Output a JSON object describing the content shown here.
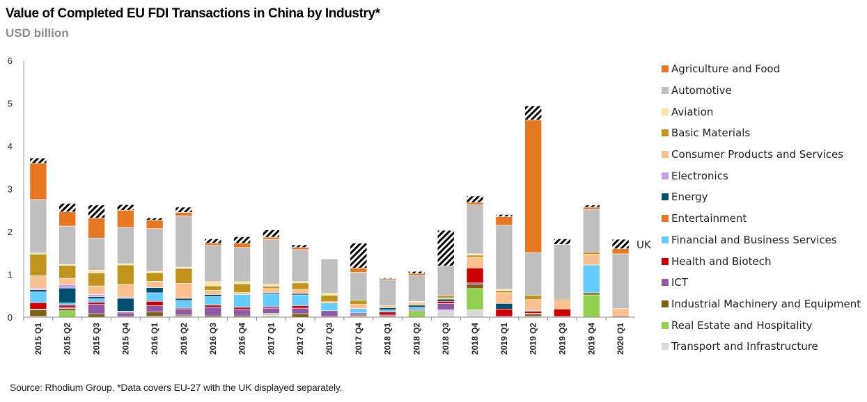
{
  "title": "Value of Completed EU FDI Transactions in China by Industry*",
  "subtitle": "USD billion",
  "source": "Source: Rhodium Group. *Data covers EU-27 with the UK displayed separately.",
  "uk_label": "UK",
  "chart_data": {
    "type": "bar",
    "stacked": true,
    "ylim": [
      0,
      6
    ],
    "yticks": [
      "0",
      "1",
      "2",
      "3",
      "4",
      "5",
      "6"
    ],
    "categories": [
      "2015 Q1",
      "2015 Q2",
      "2015 Q3",
      "2015 Q4",
      "2016 Q1",
      "2016 Q2",
      "2016 Q3",
      "2016 Q4",
      "2017 Q1",
      "2017 Q2",
      "2017 Q3",
      "2017 Q4",
      "2018 Q1",
      "2018 Q2",
      "2018 Q3",
      "2018 Q4",
      "2019 Q1",
      "2019 Q2",
      "2019 Q3",
      "2019 Q4",
      "2020 Q1"
    ],
    "series": [
      {
        "name": "Transport and Infrastructure",
        "color": "#d9d9d9",
        "values": [
          0.02,
          0,
          0,
          0,
          0.02,
          0.02,
          0,
          0,
          0.05,
          0,
          0,
          0.02,
          0,
          0,
          0.17,
          0.17,
          0,
          0.02,
          0,
          0,
          0
        ]
      },
      {
        "name": "Real Estate and Hospitality",
        "color": "#92d050",
        "values": [
          0,
          0.15,
          0,
          0,
          0,
          0,
          0,
          0,
          0.02,
          0,
          0,
          0,
          0,
          0.15,
          0,
          0.5,
          0,
          0,
          0,
          0.52,
          0
        ]
      },
      {
        "name": "Industrial Machinery and Equipment",
        "color": "#7f5f11",
        "values": [
          0.15,
          0.05,
          0.08,
          0.02,
          0.1,
          0.03,
          0.03,
          0.03,
          0.02,
          0.08,
          0.02,
          0.03,
          0.02,
          0,
          0,
          0.1,
          0,
          0.05,
          0,
          0.05,
          0
        ]
      },
      {
        "name": "ICT",
        "color": "#8e5aa6",
        "values": [
          0.02,
          0.03,
          0.22,
          0.08,
          0.15,
          0.13,
          0.2,
          0.15,
          0.12,
          0.13,
          0.13,
          0.05,
          0.03,
          0.03,
          0.15,
          0.03,
          0.02,
          0.02,
          0.02,
          0,
          0
        ]
      },
      {
        "name": "Health and Biotech",
        "color": "#cc0000",
        "values": [
          0.15,
          0.05,
          0.05,
          0.02,
          0.1,
          0.03,
          0.05,
          0.05,
          0.03,
          0.06,
          0,
          0,
          0.07,
          0,
          0.05,
          0.35,
          0.17,
          0.05,
          0.17,
          0,
          0.02
        ]
      },
      {
        "name": "Financial and Business Services",
        "color": "#66ccff",
        "values": [
          0.25,
          0.05,
          0.08,
          0.02,
          0.2,
          0.18,
          0.2,
          0.3,
          0.3,
          0.25,
          0.18,
          0.1,
          0.05,
          0.05,
          0,
          0,
          0,
          0.02,
          0,
          0.65,
          0
        ]
      },
      {
        "name": "Entertainment",
        "color": "#e87722",
        "values": [
          0,
          0,
          0,
          0,
          0,
          0,
          0,
          0,
          0,
          0,
          0,
          0,
          0,
          0,
          0,
          0,
          0,
          0,
          0,
          0,
          0
        ]
      },
      {
        "name": "Energy",
        "color": "#004f6e",
        "values": [
          0.05,
          0.35,
          0.05,
          0.3,
          0.12,
          0.05,
          0.05,
          0,
          0.03,
          0.03,
          0,
          0,
          0.05,
          0.05,
          0.05,
          0,
          0.13,
          0,
          0,
          0,
          0
        ]
      },
      {
        "name": "Electronics",
        "color": "#c6a0e8",
        "values": [
          0.03,
          0.08,
          0.05,
          0.03,
          0,
          0,
          0,
          0,
          0,
          0,
          0,
          0,
          0,
          0,
          0,
          0,
          0,
          0,
          0,
          0,
          0
        ]
      },
      {
        "name": "Consumer Products and Services",
        "color": "#fac090",
        "values": [
          0.3,
          0.15,
          0.2,
          0.3,
          0.15,
          0.35,
          0.1,
          0.05,
          0.1,
          0.1,
          0.03,
          0.1,
          0.05,
          0.05,
          0.03,
          0.25,
          0.25,
          0.25,
          0.2,
          0.25,
          0.18
        ]
      },
      {
        "name": "Basic Materials",
        "color": "#c0941c",
        "values": [
          0.5,
          0.3,
          0.3,
          0.45,
          0.2,
          0.35,
          0.1,
          0.2,
          0.05,
          0.15,
          0.15,
          0.1,
          0,
          0.02,
          0.05,
          0.05,
          0.05,
          0.1,
          0.03,
          0.05,
          0
        ]
      },
      {
        "name": "Aviation",
        "color": "#fbe3a3",
        "values": [
          0.03,
          0.02,
          0.07,
          0.03,
          0.03,
          0.03,
          0.1,
          0.05,
          0.05,
          0.03,
          0.05,
          0,
          0,
          0.02,
          0,
          0.03,
          0.03,
          0,
          0,
          0,
          0
        ]
      },
      {
        "name": "Automotive",
        "color": "#bfbfbf",
        "values": [
          1.25,
          0.9,
          0.75,
          0.85,
          1.0,
          1.2,
          0.85,
          0.8,
          1.05,
          0.75,
          0.8,
          0.65,
          0.6,
          0.6,
          0.7,
          1.15,
          1.5,
          1.0,
          1.28,
          1.0,
          1.28
        ]
      },
      {
        "name": "Agriculture and Food",
        "color": "#e87722",
        "values": [
          0.85,
          0.33,
          0.47,
          0.4,
          0.2,
          0.08,
          0.05,
          0.1,
          0.05,
          0.05,
          0,
          0.1,
          0.03,
          0.05,
          0,
          0.05,
          0.2,
          3.1,
          0,
          0.05,
          0.12
        ]
      },
      {
        "name": "UK",
        "color": "#000000",
        "hatched": true,
        "values": [
          0.12,
          0.2,
          0.3,
          0.13,
          0.05,
          0.12,
          0.1,
          0.15,
          0.17,
          0.06,
          0,
          0.58,
          0.02,
          0.05,
          0.83,
          0.15,
          0.05,
          0.33,
          0.13,
          0.05,
          0.22
        ]
      }
    ],
    "legend": {
      "placement": "right",
      "items": [
        {
          "label": "Agriculture and Food",
          "color": "#e87722"
        },
        {
          "label": "Automotive",
          "color": "#bfbfbf"
        },
        {
          "label": "Aviation",
          "color": "#fbe3a3"
        },
        {
          "label": "Basic Materials",
          "color": "#c0941c"
        },
        {
          "label": "Consumer Products and Services",
          "color": "#fac090"
        },
        {
          "label": "Electronics",
          "color": "#c6a0e8"
        },
        {
          "label": "Energy",
          "color": "#004f6e"
        },
        {
          "label": "Entertainment",
          "color": "#e87722"
        },
        {
          "label": "Financial and Business Services",
          "color": "#66ccff"
        },
        {
          "label": "Health and Biotech",
          "color": "#cc0000"
        },
        {
          "label": "ICT",
          "color": "#8e5aa6"
        },
        {
          "label": "Industrial Machinery and Equipment",
          "color": "#7f5f11"
        },
        {
          "label": "Real Estate and Hospitality",
          "color": "#92d050"
        },
        {
          "label": "Transport and Infrastructure",
          "color": "#d9d9d9"
        }
      ]
    },
    "grid": false
  }
}
